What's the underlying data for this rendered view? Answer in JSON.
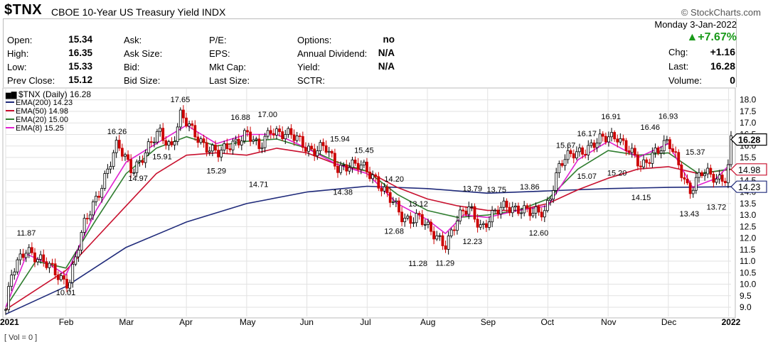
{
  "header": {
    "symbol": "$TNX",
    "description": "CBOE 10-Year US Treasury Yield INDX",
    "brand": "© StockCharts.com",
    "date": "Monday  3-Jan-2022",
    "pct_change": "▲+7.67%",
    "chg_label": "Chg:",
    "chg_value": "+1.16",
    "last_label": "Last:",
    "last_value": "16.28",
    "volume_label": "Volume:",
    "volume_value": "0",
    "open_label": "Open:",
    "open_value": "15.34",
    "high_label": "High:",
    "high_value": "16.35",
    "low_label": "Low:",
    "low_value": "15.33",
    "prev_label": "Prev Close:",
    "prev_value": "15.12",
    "ask_label": "Ask:",
    "ask_size_label": "Ask Size:",
    "bid_label": "Bid:",
    "bid_size_label": "Bid Size:",
    "pe_label": "P/E:",
    "eps_label": "EPS:",
    "mktcap_label": "Mkt Cap:",
    "lastsize_label": "Last Size:",
    "options_label": "Options:",
    "options_value": "no",
    "dividend_label": "Annual Dividend:",
    "dividend_value": "N/A",
    "yield_label": "Yield:",
    "yield_value": "N/A",
    "sctr_label": "SCTR:"
  },
  "footer_text": "[ Vol = 0 ]",
  "chart_data": {
    "type": "line",
    "title": "$TNX (Daily) 16.28",
    "colors": {
      "ema200": "#1f2a7a",
      "ema50": "#c8102e",
      "ema20": "#2f7d2f",
      "ema8": "#e020d0",
      "up": "#000000",
      "down": "#cc0000"
    },
    "series_labels": [
      "EMA(200) 14.23",
      "EMA(50) 14.98",
      "EMA(20) 15.00",
      "EMA(8) 15.25"
    ],
    "x_ticks": [
      "2021",
      "Feb",
      "Mar",
      "Apr",
      "May",
      "Jun",
      "Jul",
      "Aug",
      "Sep",
      "Oct",
      "Nov",
      "Dec",
      "2022"
    ],
    "y_ticks": [
      "9.0",
      "9.5",
      "10.0",
      "10.5",
      "11.0",
      "11.5",
      "12.0",
      "12.5",
      "13.0",
      "13.5",
      "14.0",
      "14.5",
      "15.0",
      "15.5",
      "16.0",
      "16.5",
      "17.0",
      "17.5",
      "18.0"
    ],
    "ylim": [
      8.6,
      18.3
    ],
    "right_badges": [
      {
        "text": "16.28",
        "value": 16.28
      },
      {
        "text": "14.98",
        "value": 14.98
      },
      {
        "text": "14.23",
        "value": 14.23
      }
    ],
    "annotations": [
      {
        "text": "11.87",
        "m": 0.35,
        "v": 11.87,
        "dy": -8
      },
      {
        "text": "10.01",
        "m": 1.0,
        "v": 10.01,
        "dy": 16
      },
      {
        "text": "16.26",
        "m": 1.85,
        "v": 16.26,
        "dy": -8
      },
      {
        "text": "14.97",
        "m": 2.2,
        "v": 14.97,
        "dy": 16
      },
      {
        "text": "17.65",
        "m": 2.9,
        "v": 17.65,
        "dy": -8
      },
      {
        "text": "15.91",
        "m": 2.6,
        "v": 15.91,
        "dy": 16
      },
      {
        "text": "15.29",
        "m": 3.5,
        "v": 15.29,
        "dy": 16
      },
      {
        "text": "16.88",
        "m": 3.9,
        "v": 16.88,
        "dy": -8
      },
      {
        "text": "17.00",
        "m": 4.35,
        "v": 17.0,
        "dy": -8
      },
      {
        "text": "14.71",
        "m": 4.2,
        "v": 14.71,
        "dy": 16
      },
      {
        "text": "15.94",
        "m": 5.55,
        "v": 15.94,
        "dy": -8
      },
      {
        "text": "15.45",
        "m": 5.95,
        "v": 15.45,
        "dy": -8
      },
      {
        "text": "14.38",
        "m": 5.6,
        "v": 14.38,
        "dy": 16
      },
      {
        "text": "14.20",
        "m": 6.45,
        "v": 14.2,
        "dy": -8
      },
      {
        "text": "13.12",
        "m": 6.85,
        "v": 13.12,
        "dy": -8
      },
      {
        "text": "12.68",
        "m": 6.45,
        "v": 12.68,
        "dy": 16
      },
      {
        "text": "11.28",
        "m": 6.85,
        "v": 11.28,
        "dy": 16
      },
      {
        "text": "11.29",
        "m": 7.3,
        "v": 11.29,
        "dy": 16
      },
      {
        "text": "13.79",
        "m": 7.75,
        "v": 13.79,
        "dy": -8
      },
      {
        "text": "13.75",
        "m": 8.15,
        "v": 13.75,
        "dy": -8
      },
      {
        "text": "12.23",
        "m": 7.75,
        "v": 12.23,
        "dy": 16
      },
      {
        "text": "13.86",
        "m": 8.7,
        "v": 13.86,
        "dy": -8
      },
      {
        "text": "12.60",
        "m": 8.85,
        "v": 12.6,
        "dy": 16
      },
      {
        "text": "15.67",
        "m": 9.3,
        "v": 15.67,
        "dy": -8
      },
      {
        "text": "16.17",
        "m": 9.65,
        "v": 16.17,
        "dy": -8
      },
      {
        "text": "16.91",
        "m": 10.05,
        "v": 16.91,
        "dy": -8
      },
      {
        "text": "15.07",
        "m": 9.65,
        "v": 15.07,
        "dy": 16
      },
      {
        "text": "15.20",
        "m": 10.15,
        "v": 15.2,
        "dy": 16
      },
      {
        "text": "14.15",
        "m": 10.55,
        "v": 14.15,
        "dy": 16
      },
      {
        "text": "16.46",
        "m": 10.7,
        "v": 16.46,
        "dy": -8
      },
      {
        "text": "16.93",
        "m": 11.0,
        "v": 16.93,
        "dy": -8
      },
      {
        "text": "15.37",
        "m": 11.45,
        "v": 15.37,
        "dy": -8
      },
      {
        "text": "13.43",
        "m": 11.35,
        "v": 13.43,
        "dy": 16
      },
      {
        "text": "13.72",
        "m": 11.8,
        "v": 13.72,
        "dy": 16
      }
    ],
    "price_anchors": [
      [
        0,
        8.9
      ],
      [
        0.1,
        10.4
      ],
      [
        0.35,
        11.6
      ],
      [
        0.6,
        11.0
      ],
      [
        0.9,
        10.3
      ],
      [
        1.05,
        10.1
      ],
      [
        1.3,
        12.5
      ],
      [
        1.6,
        14.4
      ],
      [
        1.85,
        16.0
      ],
      [
        2.1,
        15.0
      ],
      [
        2.3,
        15.6
      ],
      [
        2.55,
        16.6
      ],
      [
        2.75,
        16.0
      ],
      [
        2.9,
        17.3
      ],
      [
        3.1,
        16.6
      ],
      [
        3.3,
        16.1
      ],
      [
        3.55,
        15.6
      ],
      [
        3.8,
        16.2
      ],
      [
        4.0,
        16.6
      ],
      [
        4.2,
        15.8
      ],
      [
        4.4,
        16.8
      ],
      [
        4.6,
        16.5
      ],
      [
        4.85,
        16.3
      ],
      [
        5.1,
        15.8
      ],
      [
        5.3,
        15.9
      ],
      [
        5.5,
        15.1
      ],
      [
        5.7,
        15.2
      ],
      [
        5.95,
        15.0
      ],
      [
        6.15,
        14.6
      ],
      [
        6.4,
        13.6
      ],
      [
        6.6,
        12.8
      ],
      [
        6.85,
        13.0
      ],
      [
        7.05,
        12.2
      ],
      [
        7.3,
        11.8
      ],
      [
        7.5,
        12.8
      ],
      [
        7.7,
        13.3
      ],
      [
        7.9,
        12.5
      ],
      [
        8.1,
        13.0
      ],
      [
        8.3,
        13.4
      ],
      [
        8.55,
        13.3
      ],
      [
        8.75,
        13.0
      ],
      [
        8.95,
        13.2
      ],
      [
        9.2,
        15.2
      ],
      [
        9.45,
        15.7
      ],
      [
        9.7,
        16.0
      ],
      [
        9.95,
        16.3
      ],
      [
        10.15,
        16.5
      ],
      [
        10.35,
        15.8
      ],
      [
        10.55,
        15.0
      ],
      [
        10.75,
        15.8
      ],
      [
        11.0,
        16.1
      ],
      [
        11.2,
        15.0
      ],
      [
        11.35,
        14.1
      ],
      [
        11.55,
        14.8
      ],
      [
        11.8,
        14.6
      ],
      [
        11.95,
        14.7
      ],
      [
        12.0,
        15.2
      ],
      [
        12.04,
        16.28
      ]
    ],
    "ema200": [
      [
        0,
        8.7
      ],
      [
        1,
        9.9
      ],
      [
        2,
        11.6
      ],
      [
        3,
        12.7
      ],
      [
        4,
        13.5
      ],
      [
        5,
        14.0
      ],
      [
        6,
        14.25
      ],
      [
        7,
        14.15
      ],
      [
        8,
        13.95
      ],
      [
        9,
        14.05
      ],
      [
        10,
        14.15
      ],
      [
        11,
        14.2
      ],
      [
        12.04,
        14.23
      ]
    ],
    "ema50": [
      [
        0,
        8.9
      ],
      [
        1,
        10.6
      ],
      [
        2,
        13.4
      ],
      [
        2.5,
        14.8
      ],
      [
        3,
        15.6
      ],
      [
        3.5,
        15.7
      ],
      [
        4,
        15.6
      ],
      [
        4.5,
        15.9
      ],
      [
        5,
        15.7
      ],
      [
        5.5,
        15.2
      ],
      [
        6,
        14.9
      ],
      [
        6.5,
        14.2
      ],
      [
        7,
        13.7
      ],
      [
        7.5,
        13.4
      ],
      [
        8,
        13.2
      ],
      [
        8.5,
        13.2
      ],
      [
        9,
        13.5
      ],
      [
        9.5,
        14.1
      ],
      [
        10,
        14.6
      ],
      [
        10.5,
        15.0
      ],
      [
        11,
        15.1
      ],
      [
        11.5,
        14.8
      ],
      [
        12.04,
        14.98
      ]
    ],
    "ema20": [
      [
        0,
        9.0
      ],
      [
        0.5,
        11.0
      ],
      [
        1,
        10.7
      ],
      [
        1.5,
        12.8
      ],
      [
        2,
        14.8
      ],
      [
        2.5,
        15.9
      ],
      [
        3,
        16.4
      ],
      [
        3.5,
        16.0
      ],
      [
        4,
        16.2
      ],
      [
        4.5,
        16.3
      ],
      [
        5,
        15.9
      ],
      [
        5.5,
        15.3
      ],
      [
        6,
        14.9
      ],
      [
        6.5,
        13.9
      ],
      [
        7,
        13.2
      ],
      [
        7.5,
        12.9
      ],
      [
        8,
        13.0
      ],
      [
        8.5,
        13.2
      ],
      [
        9,
        13.7
      ],
      [
        9.5,
        15.0
      ],
      [
        10,
        15.8
      ],
      [
        10.5,
        15.6
      ],
      [
        11,
        15.7
      ],
      [
        11.5,
        14.8
      ],
      [
        12.04,
        15.0
      ]
    ],
    "ema8": [
      [
        0,
        9.0
      ],
      [
        0.35,
        11.3
      ],
      [
        0.7,
        10.9
      ],
      [
        1,
        10.4
      ],
      [
        1.5,
        13.2
      ],
      [
        2,
        15.3
      ],
      [
        2.5,
        16.1
      ],
      [
        3,
        16.9
      ],
      [
        3.5,
        16.1
      ],
      [
        4,
        16.5
      ],
      [
        4.5,
        16.5
      ],
      [
        5,
        15.9
      ],
      [
        5.5,
        15.2
      ],
      [
        6,
        14.8
      ],
      [
        6.5,
        13.5
      ],
      [
        7,
        12.8
      ],
      [
        7.3,
        12.2
      ],
      [
        7.6,
        13.0
      ],
      [
        8,
        12.9
      ],
      [
        8.5,
        13.2
      ],
      [
        9,
        13.4
      ],
      [
        9.5,
        15.4
      ],
      [
        10,
        16.2
      ],
      [
        10.5,
        15.5
      ],
      [
        11,
        16.1
      ],
      [
        11.4,
        14.2
      ],
      [
        11.8,
        14.6
      ],
      [
        12.04,
        15.25
      ]
    ]
  }
}
